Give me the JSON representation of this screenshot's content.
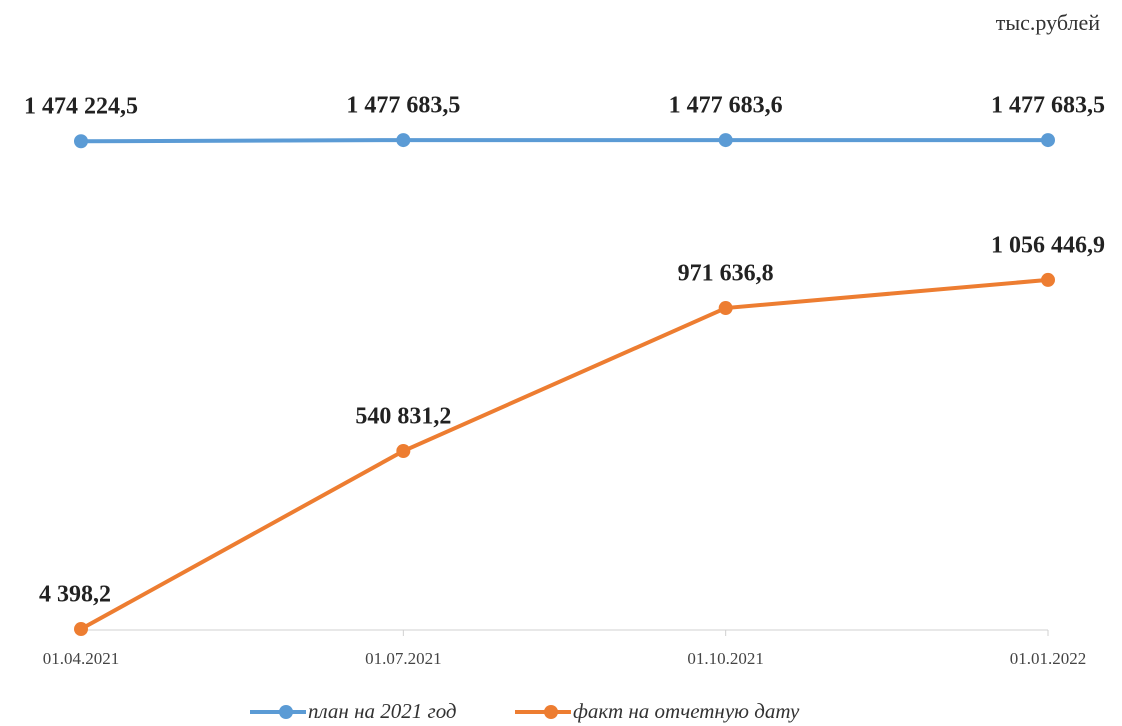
{
  "chart_data": {
    "type": "line",
    "unit_label": "тыс.рублей",
    "categories": [
      "01.04.2021",
      "01.07.2021",
      "01.10.2021",
      "01.01.2022"
    ],
    "ylim": [
      0,
      1600000
    ],
    "series": [
      {
        "name": "план на 2021 год",
        "color": "#5b9bd5",
        "values": [
          1474224.5,
          1477683.5,
          1477683.6,
          1477683.5
        ],
        "value_labels": [
          "1 474 224,5",
          "1 477 683,5",
          "1 477 683,6",
          "1 477 683,5"
        ]
      },
      {
        "name": "факт на отчетную дату",
        "color": "#ed7d31",
        "values": [
          4398.2,
          540831.2,
          971636.8,
          1056446.9
        ],
        "value_labels": [
          "4 398,2",
          "540 831,2",
          "971 636,8",
          "1 056 446,9"
        ]
      }
    ]
  }
}
